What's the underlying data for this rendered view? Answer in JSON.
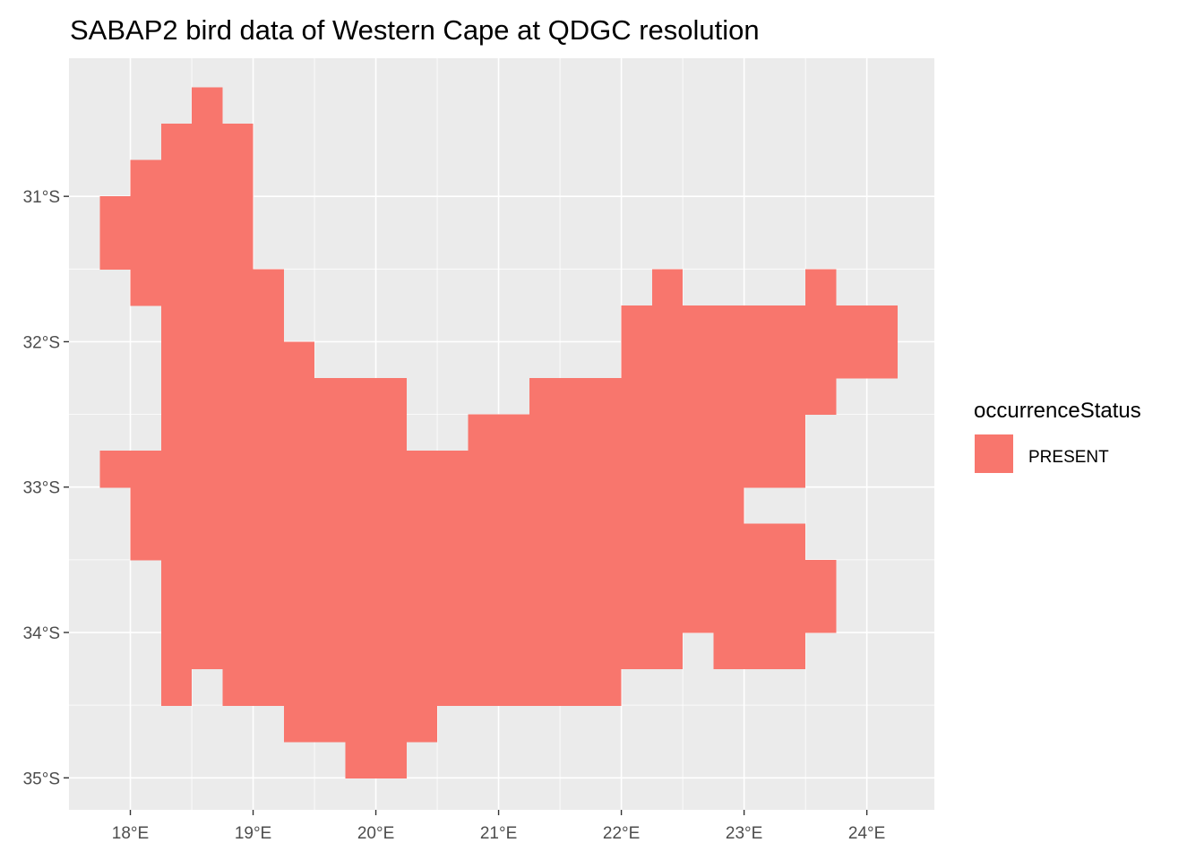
{
  "chart_data": {
    "type": "heatmap",
    "title": "SABAP2 bird data of Western Cape at QDGC resolution",
    "xlabel": "",
    "ylabel": "",
    "xlim": [
      17.5,
      24.55
    ],
    "ylim": [
      -35.22,
      -30.05
    ],
    "x_ticks": [
      18,
      19,
      20,
      21,
      22,
      23,
      24
    ],
    "x_tick_labels": [
      "18°E",
      "19°E",
      "20°E",
      "21°E",
      "22°E",
      "23°E",
      "24°E"
    ],
    "y_ticks": [
      -31,
      -32,
      -33,
      -34,
      -35
    ],
    "y_tick_labels": [
      "31°S",
      "32°S",
      "33°S",
      "34°S",
      "35°S"
    ],
    "grid": true,
    "cell_size_deg": 0.25,
    "cell_rows_note_lat_top": "each row lists [west_lon, east_lon] runs of present cells for the band from lat_top down 0.25°",
    "cell_rows": [
      {
        "lat_top": -30.25,
        "runs": [
          [
            18.5,
            18.75
          ]
        ]
      },
      {
        "lat_top": -30.5,
        "runs": [
          [
            18.25,
            19.0
          ]
        ]
      },
      {
        "lat_top": -30.75,
        "runs": [
          [
            18.0,
            19.0
          ]
        ]
      },
      {
        "lat_top": -31.0,
        "runs": [
          [
            17.75,
            19.0
          ]
        ]
      },
      {
        "lat_top": -31.25,
        "runs": [
          [
            17.75,
            19.0
          ]
        ]
      },
      {
        "lat_top": -31.5,
        "runs": [
          [
            18.0,
            19.25
          ],
          [
            22.25,
            22.5
          ],
          [
            23.5,
            23.75
          ]
        ]
      },
      {
        "lat_top": -31.75,
        "runs": [
          [
            18.25,
            19.25
          ],
          [
            22.0,
            24.25
          ]
        ]
      },
      {
        "lat_top": -32.0,
        "runs": [
          [
            18.25,
            19.5
          ],
          [
            22.0,
            24.25
          ]
        ]
      },
      {
        "lat_top": -32.25,
        "runs": [
          [
            18.25,
            20.25
          ],
          [
            21.25,
            23.75
          ]
        ]
      },
      {
        "lat_top": -32.5,
        "runs": [
          [
            18.25,
            20.25
          ],
          [
            20.75,
            23.5
          ]
        ]
      },
      {
        "lat_top": -32.75,
        "runs": [
          [
            17.75,
            23.5
          ]
        ]
      },
      {
        "lat_top": -33.0,
        "runs": [
          [
            18.0,
            23.0
          ]
        ]
      },
      {
        "lat_top": -33.25,
        "runs": [
          [
            18.0,
            23.5
          ]
        ]
      },
      {
        "lat_top": -33.5,
        "runs": [
          [
            18.25,
            23.75
          ]
        ]
      },
      {
        "lat_top": -33.75,
        "runs": [
          [
            18.25,
            23.75
          ]
        ]
      },
      {
        "lat_top": -34.0,
        "runs": [
          [
            18.25,
            22.5
          ],
          [
            22.75,
            23.5
          ]
        ]
      },
      {
        "lat_top": -34.25,
        "runs": [
          [
            18.25,
            18.5
          ],
          [
            18.75,
            22.0
          ]
        ]
      },
      {
        "lat_top": -34.5,
        "runs": [
          [
            19.25,
            20.5
          ]
        ]
      },
      {
        "lat_top": -34.75,
        "runs": [
          [
            19.75,
            20.25
          ]
        ]
      }
    ],
    "fill_color": "#F8766D",
    "panel_background": "#EBEBEB",
    "grid_color": "#FFFFFF",
    "legend": {
      "title": "occurrenceStatus",
      "entries": [
        {
          "label": "PRESENT",
          "color": "#F8766D"
        }
      ],
      "placement": "right"
    }
  }
}
